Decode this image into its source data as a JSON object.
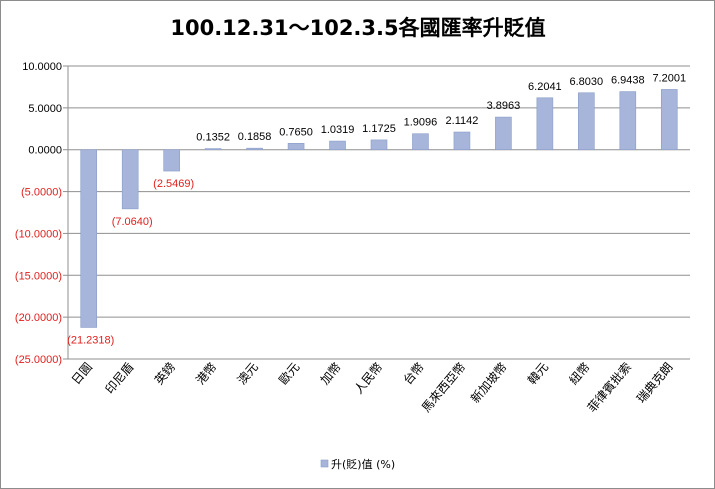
{
  "chart_data": {
    "type": "bar",
    "title": "100.12.31～102.3.5各國匯率升貶值",
    "categories": [
      "日圓",
      "印尼盾",
      "英鎊",
      "港幣",
      "澳元",
      "歐元",
      "加幣",
      "人民幣",
      "台幣",
      "馬來西亞幣",
      "新加坡幣",
      "韓元",
      "紐幣",
      "菲律賓批索",
      "瑞典克朗"
    ],
    "series": [
      {
        "name": "升(貶)值 (%)",
        "values": [
          -21.2318,
          -7.064,
          -2.5469,
          0.1352,
          0.1858,
          0.765,
          1.0319,
          1.1725,
          1.9096,
          2.1142,
          3.8963,
          6.2041,
          6.803,
          6.9438,
          7.2001
        ]
      }
    ],
    "data_labels": [
      "(21.2318)",
      "(7.0640)",
      "(2.5469)",
      "0.1352",
      "0.1858",
      "0.7650",
      "1.0319",
      "1.1725",
      "1.9096",
      "2.1142",
      "3.8963",
      "6.2041",
      "6.8030",
      "6.9438",
      "7.2001"
    ],
    "yticks": [
      10,
      5,
      0,
      -5,
      -10,
      -15,
      -20,
      -25
    ],
    "ytick_labels": [
      "10.0000",
      "5.0000",
      "0.0000",
      "(5.0000)",
      "(10.0000)",
      "(15.0000)",
      "(20.0000)",
      "(25.0000)"
    ],
    "ylim": [
      -25,
      10
    ],
    "grid": true,
    "legend_position": "bottom",
    "colors": {
      "bar_fill": "#a6b5d9",
      "bar_stroke": "#8b9cc8",
      "negative_text": "#e0201e",
      "text": "#000000",
      "grid": "#8f8f8f"
    }
  }
}
